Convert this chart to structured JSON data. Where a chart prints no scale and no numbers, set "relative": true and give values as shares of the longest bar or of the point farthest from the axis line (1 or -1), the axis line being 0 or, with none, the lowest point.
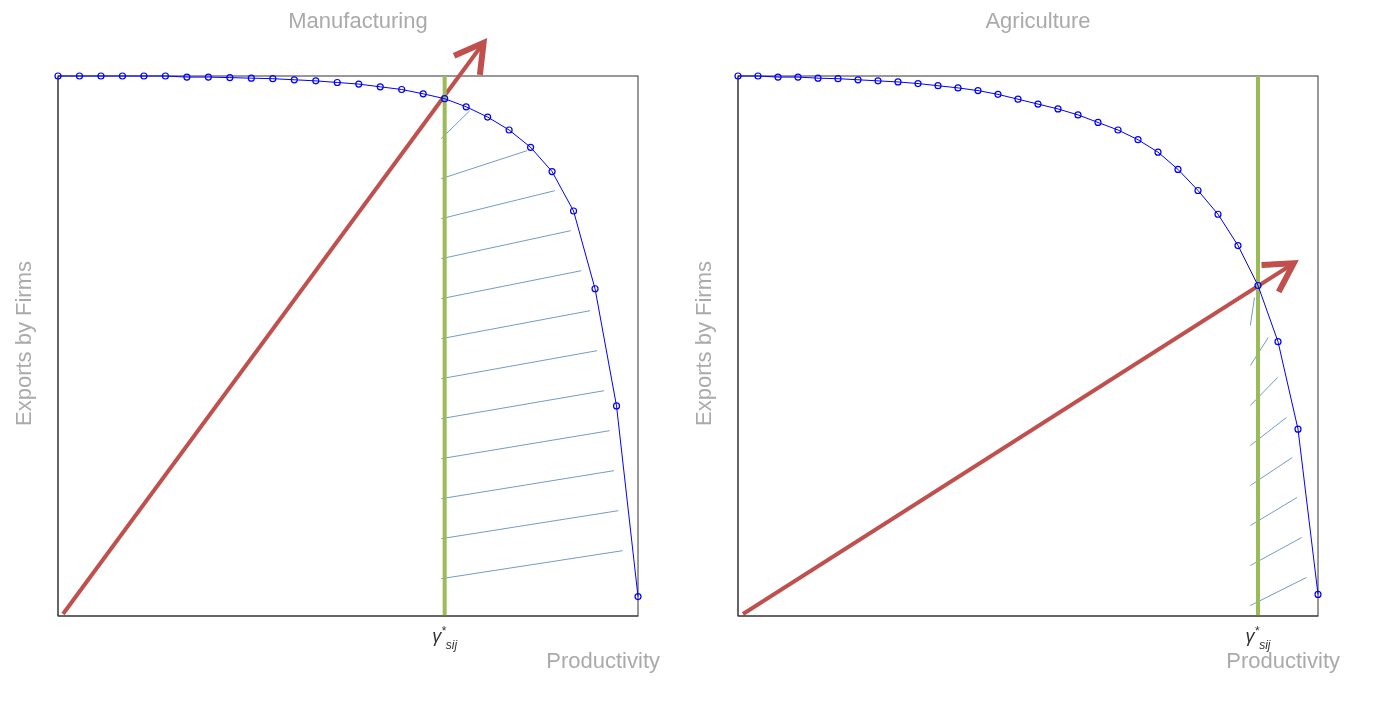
{
  "chart_data": [
    {
      "type": "line",
      "title": "Manufacturing",
      "xlabel": "Productivity",
      "ylabel": "Exports by Firms",
      "relative": true,
      "marker": "circle",
      "categories": [
        null,
        null,
        null,
        null,
        null,
        null,
        null,
        null,
        null,
        null,
        null,
        null,
        null,
        null,
        null,
        null,
        null,
        null,
        null,
        null,
        null,
        null,
        null,
        null,
        null,
        null,
        null,
        null
      ],
      "series": [
        {
          "color": "#0000ff",
          "values": [
            1.0,
            1.0,
            1.0,
            1.0,
            1.0,
            1.0,
            0.998,
            0.998,
            0.997,
            0.996,
            0.995,
            0.993,
            0.991,
            0.988,
            0.985,
            0.98,
            0.975,
            0.967,
            0.958,
            0.943,
            0.924,
            0.9,
            0.868,
            0.823,
            0.75,
            0.606,
            0.389,
            0.036
          ]
        }
      ],
      "annotations": [
        "γ$^{*}$$_{sij}$"
      ]
    },
    {
      "type": "line",
      "title": "Agriculture",
      "xlabel": "Productivity",
      "ylabel": "Exports by Firms",
      "relative": true,
      "marker": "circle",
      "categories": [
        null,
        null,
        null,
        null,
        null,
        null,
        null,
        null,
        null,
        null,
        null,
        null,
        null,
        null,
        null,
        null,
        null,
        null,
        null,
        null,
        null,
        null,
        null,
        null,
        null,
        null,
        null,
        null,
        null,
        null
      ],
      "series": [
        {
          "color": "#0000ff",
          "values": [
            1.0,
            1.0,
            0.998,
            0.998,
            0.996,
            0.995,
            0.993,
            0.991,
            0.989,
            0.986,
            0.982,
            0.978,
            0.973,
            0.966,
            0.957,
            0.948,
            0.939,
            0.928,
            0.914,
            0.9,
            0.882,
            0.859,
            0.827,
            0.788,
            0.744,
            0.686,
            0.612,
            0.508,
            0.346,
            0.04
          ]
        }
      ],
      "annotations": [
        "γ$^{*}$$_{sij}$"
      ]
    }
  ]
}
